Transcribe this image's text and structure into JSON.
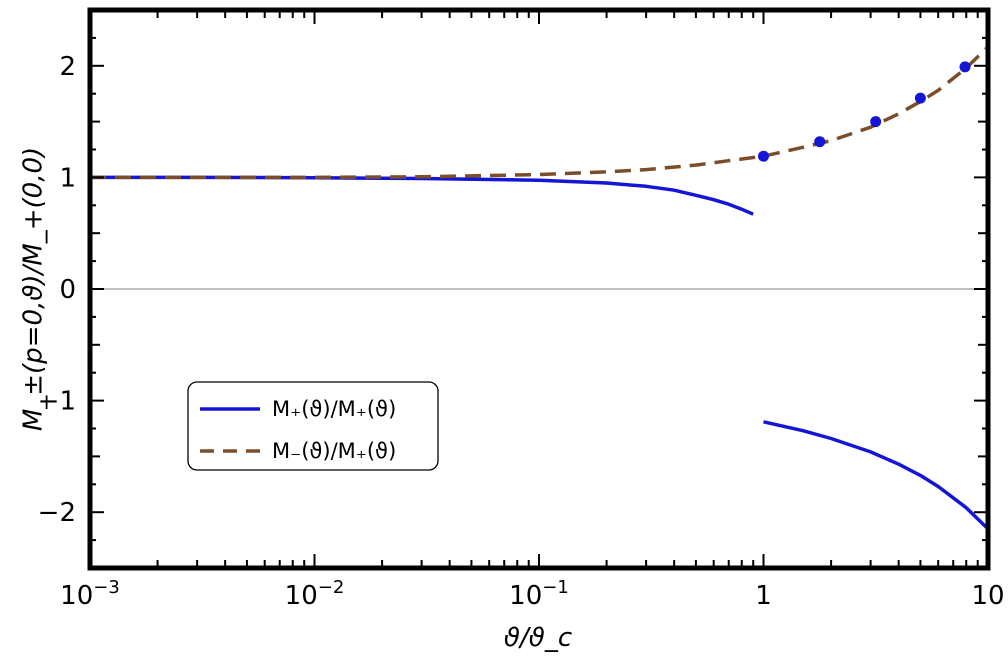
{
  "chart_data": {
    "type": "line",
    "title": "",
    "xlabel": "ϑ/ϑ_c",
    "ylabel": "M_±(p=0,ϑ)/M_+(0,0)",
    "xscale": "log",
    "xlim": [
      0.001,
      10
    ],
    "ylim": [
      -2.5,
      2.5
    ],
    "grid": false,
    "legend_position": "lower-left",
    "x_tick_labels": [
      "10^-3",
      "10^-2",
      "10^-1",
      "1",
      "10"
    ],
    "y_tick_labels": [
      "-2",
      "-1",
      "0",
      "1",
      "2"
    ],
    "series": [
      {
        "name": "M_+(ϑ)/M_+(ϑ)",
        "legend_label": "M₊(ϑ)/M₊(ϑ)",
        "style": "solid",
        "color": "#1515d6",
        "segments": [
          {
            "x": [
              0.001,
              0.003,
              0.01,
              0.03,
              0.1,
              0.2,
              0.3,
              0.4,
              0.5,
              0.6,
              0.7,
              0.8,
              0.9
            ],
            "y": [
              1.0,
              1.0,
              0.997,
              0.99,
              0.975,
              0.95,
              0.92,
              0.885,
              0.84,
              0.8,
              0.76,
              0.715,
              0.67
            ]
          },
          {
            "x": [
              1.0,
              1.5,
              2.0,
              3.0,
              4.0,
              5.0,
              6.0,
              8.0,
              10.0
            ],
            "y": [
              -1.19,
              -1.27,
              -1.34,
              -1.46,
              -1.57,
              -1.67,
              -1.77,
              -1.96,
              -2.15
            ]
          }
        ]
      },
      {
        "name": "M_-(ϑ)/M_+(ϑ)",
        "legend_label": "M₋(ϑ)/M₊(ϑ)",
        "style": "dashed",
        "color": "#7a4e2a",
        "segments": [
          {
            "x": [
              0.001,
              0.01,
              0.03,
              0.1,
              0.2,
              0.3,
              0.5,
              0.7,
              1.0,
              1.5,
              2.0,
              3.0,
              4.0,
              5.0,
              6.0,
              8.0,
              10.0
            ],
            "y": [
              1.0,
              1.0,
              1.005,
              1.025,
              1.05,
              1.07,
              1.11,
              1.15,
              1.19,
              1.27,
              1.33,
              1.45,
              1.57,
              1.68,
              1.78,
              1.98,
              2.17
            ]
          }
        ]
      }
    ],
    "markers": {
      "color": "#1515d6",
      "x": [
        1.0,
        1.78,
        3.16,
        5.0,
        7.9
      ],
      "y": [
        1.19,
        1.32,
        1.5,
        1.71,
        1.99
      ]
    },
    "reference_line_y": 0
  }
}
